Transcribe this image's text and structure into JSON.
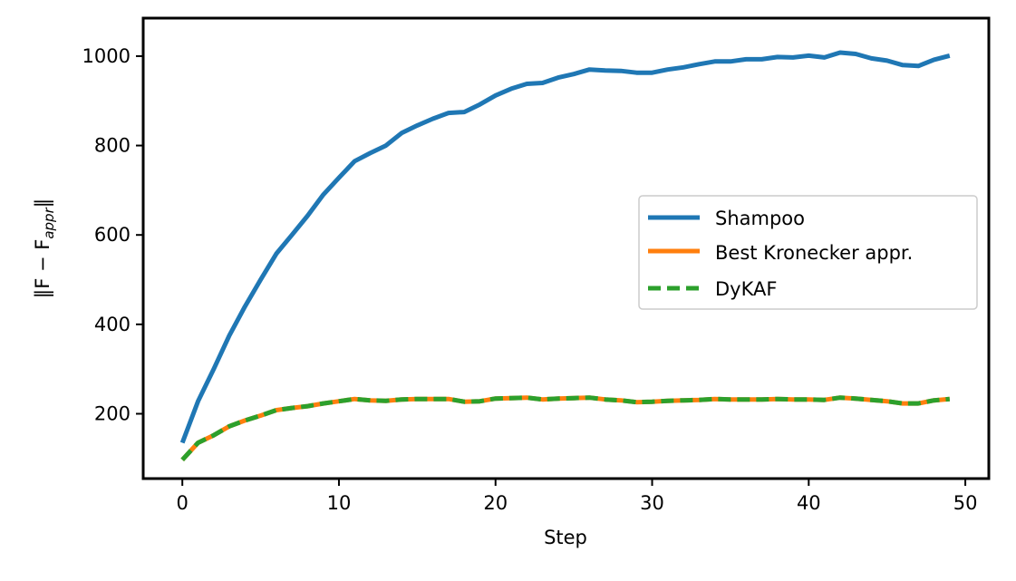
{
  "chart_data": {
    "type": "line",
    "title": "",
    "xlabel": "Step",
    "ylabel": {
      "main": "‖F − F",
      "sub": "appr",
      "end": "‖"
    },
    "xlim": [
      -2.5,
      51.5
    ],
    "ylim": [
      55,
      1085
    ],
    "xticks": [
      0,
      10,
      20,
      30,
      40,
      50
    ],
    "yticks": [
      200,
      400,
      600,
      800,
      1000
    ],
    "grid": false,
    "legend_position": "center-right",
    "x": [
      0,
      1,
      2,
      3,
      4,
      5,
      6,
      7,
      8,
      9,
      10,
      11,
      12,
      13,
      14,
      15,
      16,
      17,
      18,
      19,
      20,
      21,
      22,
      23,
      24,
      25,
      26,
      27,
      28,
      29,
      30,
      31,
      32,
      33,
      34,
      35,
      36,
      37,
      38,
      39,
      40,
      41,
      42,
      43,
      44,
      45,
      46,
      47,
      48,
      49
    ],
    "series": [
      {
        "name": "Shampoo",
        "color": "#1f77b4",
        "style": "solid",
        "values": [
          135,
          228,
          300,
          375,
          440,
          500,
          558,
          600,
          643,
          690,
          728,
          765,
          783,
          800,
          828,
          845,
          860,
          873,
          875,
          892,
          912,
          927,
          938,
          940,
          952,
          960,
          970,
          968,
          967,
          963,
          963,
          970,
          975,
          982,
          988,
          988,
          993,
          993,
          998,
          997,
          1001,
          997,
          1008,
          1005,
          995,
          990,
          980,
          978,
          992,
          1001
        ]
      },
      {
        "name": "Best Kronecker appr.",
        "color": "#ff7f0e",
        "style": "solid",
        "values": [
          97,
          135,
          152,
          172,
          185,
          196,
          208,
          213,
          217,
          223,
          228,
          233,
          230,
          229,
          232,
          233,
          233,
          233,
          227,
          228,
          234,
          235,
          236,
          232,
          234,
          235,
          236,
          232,
          230,
          226,
          227,
          229,
          230,
          231,
          233,
          232,
          232,
          232,
          233,
          232,
          232,
          231,
          236,
          234,
          231,
          228,
          223,
          223,
          230,
          233
        ]
      },
      {
        "name": "DyKAF",
        "color": "#2ca02c",
        "style": "dashed",
        "values": [
          97,
          135,
          152,
          172,
          185,
          196,
          208,
          213,
          217,
          223,
          228,
          233,
          230,
          229,
          232,
          233,
          233,
          233,
          227,
          228,
          234,
          235,
          236,
          232,
          234,
          235,
          236,
          232,
          230,
          226,
          227,
          229,
          230,
          231,
          233,
          232,
          232,
          232,
          233,
          232,
          232,
          231,
          236,
          234,
          231,
          228,
          223,
          223,
          230,
          233
        ]
      }
    ]
  }
}
